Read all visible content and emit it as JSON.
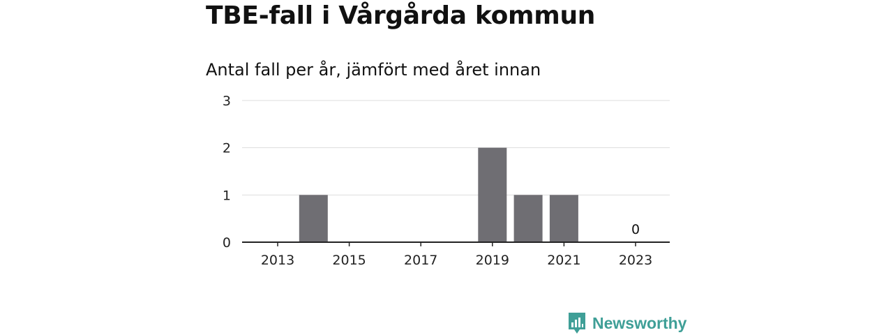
{
  "title": "TBE-fall i Vårgårda kommun",
  "subtitle": "Antal fall per år, jämfört med året innan",
  "brand": {
    "name": "Newsworthy",
    "icon": "newsworthy-logo-icon",
    "color": "#3f9f97"
  },
  "chart_data": {
    "type": "bar",
    "categories": [
      2013,
      2014,
      2015,
      2016,
      2017,
      2018,
      2019,
      2020,
      2021,
      2022,
      2023
    ],
    "values": [
      0,
      1,
      0,
      0,
      0,
      0,
      2,
      1,
      1,
      0,
      0
    ],
    "x_ticks": [
      2013,
      2015,
      2017,
      2019,
      2021,
      2023
    ],
    "y_ticks": [
      0,
      1,
      2,
      3
    ],
    "ylim": [
      0,
      3
    ],
    "data_labels": [
      {
        "x": 2023,
        "text": "0"
      }
    ],
    "bar_color": "#6f6e73",
    "grid": true
  }
}
